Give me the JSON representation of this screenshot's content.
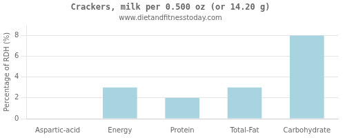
{
  "chart_data": {
    "type": "bar",
    "title": "Crackers, milk per 0.500 oz (or 14.20 g)",
    "subtitle": "www.dietandfitnesstoday.com",
    "categories": [
      "Aspartic-acid",
      "Energy",
      "Protein",
      "Total-Fat",
      "Carbohydrate"
    ],
    "values": [
      0,
      3,
      2,
      3,
      8
    ],
    "color": "#a8d4df",
    "ylabel": "Percentage of RDH (%)",
    "ylim": [
      0,
      9
    ],
    "yticks": [
      0,
      2,
      4,
      6,
      8
    ],
    "grid": true
  }
}
